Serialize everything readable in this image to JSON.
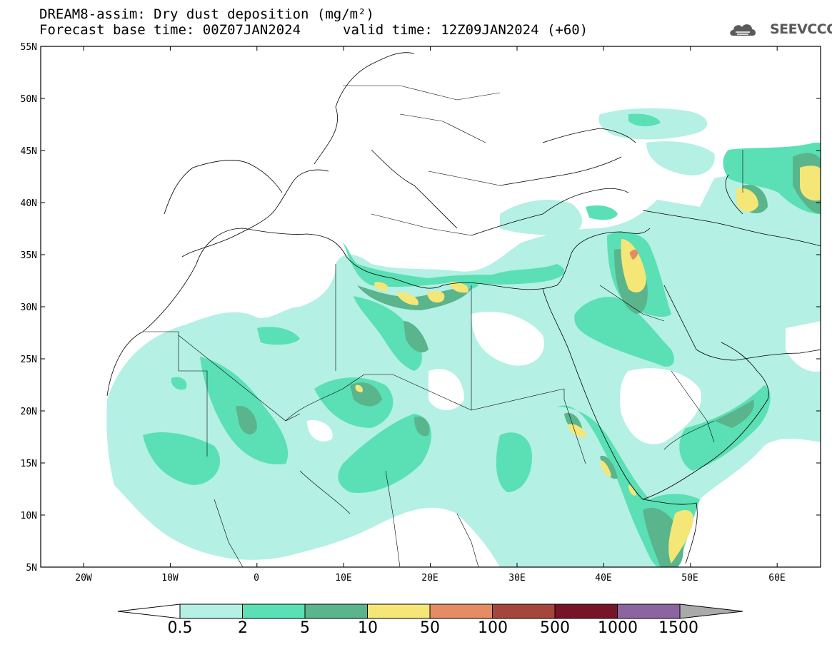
{
  "header": {
    "title_line1": "DREAM8-assim: Dry dust deposition (mg/m²)",
    "title_line2": "Forecast base time: 00Z07JAN2024",
    "title_line3": "valid time: 12Z09JAN2024 (+60)",
    "logo_text": "SEEVCCC"
  },
  "map": {
    "lat_labels": [
      "55N",
      "50N",
      "45N",
      "40N",
      "35N",
      "30N",
      "25N",
      "20N",
      "15N",
      "10N",
      "5N"
    ],
    "lon_labels": [
      "20W",
      "10W",
      "0",
      "10E",
      "20E",
      "30E",
      "40E",
      "50E",
      "60E"
    ]
  },
  "colorbar": {
    "labels": [
      "0.5",
      "2",
      "5",
      "10",
      "50",
      "100",
      "500",
      "1000",
      "1500"
    ],
    "colors": [
      "#b4f0e4",
      "#5ae0b4",
      "#5ab48c",
      "#f5e678",
      "#e68c64",
      "#a5463c",
      "#781428",
      "#8c64a0",
      "#aaaaaa"
    ]
  },
  "colors": {
    "light_dust": "#b4f0e4",
    "medium_dust": "#5ae0b4",
    "dark_dust": "#5ab48c",
    "high_dust": "#f5e678",
    "peak_dust": "#e68c64"
  }
}
